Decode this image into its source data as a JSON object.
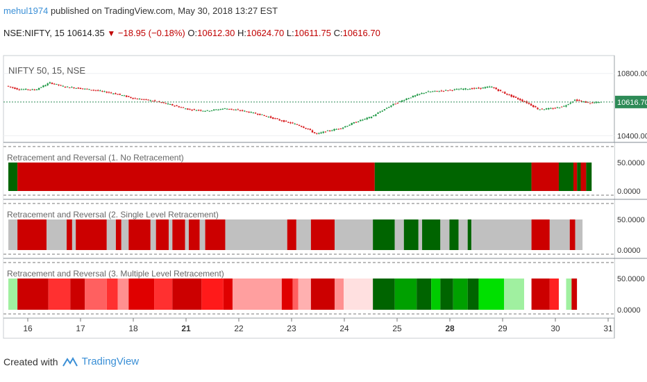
{
  "header": {
    "user": "mehul1974",
    "published_text": "published on TradingView.com, May 30, 2018 13:27 EST",
    "symbol": "NSE:NIFTY, 15",
    "last": "10614.35",
    "change": "−18.95 (−0.18%)",
    "o_label": "O:",
    "o": "10612.30",
    "h_label": "H:",
    "h": "10624.70",
    "l_label": "L:",
    "l": "10611.75",
    "c_label": "C:",
    "c": "10616.70"
  },
  "footer": {
    "created_with": "Created with",
    "brand": "TradingView"
  },
  "colors": {
    "up": "#1a9641",
    "down": "#d7191c",
    "dark_green": "#006400",
    "red": "#cc0000",
    "gray": "#c0c0c0",
    "price_line": "#2e8b57"
  },
  "chart_data": [
    {
      "type": "candlestick",
      "title": "NIFTY 50, 15, NSE",
      "x_ticks": [
        "16",
        "17",
        "18",
        "21",
        "22",
        "23",
        "24",
        "25",
        "28",
        "29",
        "30",
        "31"
      ],
      "y_ticks": [
        "10800.00",
        "10400.00"
      ],
      "y_range": [
        10380,
        10870
      ],
      "current_price_label": "10616.70",
      "price_path": [
        [
          0,
          10720
        ],
        [
          0.3,
          10700
        ],
        [
          0.8,
          10695
        ],
        [
          1.2,
          10740
        ],
        [
          1.6,
          10715
        ],
        [
          2.0,
          10705
        ],
        [
          2.5,
          10690
        ],
        [
          3.0,
          10670
        ],
        [
          3.5,
          10640
        ],
        [
          4.0,
          10625
        ],
        [
          4.5,
          10600
        ],
        [
          5.0,
          10570
        ],
        [
          5.5,
          10560
        ],
        [
          6.0,
          10575
        ],
        [
          6.5,
          10560
        ],
        [
          7.0,
          10535
        ],
        [
          7.5,
          10500
        ],
        [
          8.0,
          10470
        ],
        [
          8.3,
          10440
        ],
        [
          8.5,
          10410
        ],
        [
          8.8,
          10430
        ],
        [
          9.2,
          10450
        ],
        [
          9.6,
          10490
        ],
        [
          10.0,
          10520
        ],
        [
          10.3,
          10560
        ],
        [
          10.6,
          10600
        ],
        [
          11.0,
          10640
        ],
        [
          11.5,
          10680
        ],
        [
          12.0,
          10690
        ],
        [
          12.5,
          10700
        ],
        [
          13.0,
          10705
        ],
        [
          13.3,
          10715
        ],
        [
          13.6,
          10680
        ],
        [
          14.0,
          10640
        ],
        [
          14.3,
          10610
        ],
        [
          14.6,
          10570
        ],
        [
          15.0,
          10575
        ],
        [
          15.3,
          10590
        ],
        [
          15.6,
          10630
        ],
        [
          16.0,
          10610
        ],
        [
          16.3,
          10615
        ]
      ]
    },
    {
      "type": "heatmap",
      "title": "Retracement and Reversal (1. No Retracement)",
      "y_ticks": [
        "50.0000",
        "0.0000"
      ],
      "segments": [
        [
          0,
          0.25,
          "dark_green"
        ],
        [
          0.25,
          10.05,
          "red"
        ],
        [
          10.05,
          14.35,
          "dark_green"
        ],
        [
          14.35,
          15.1,
          "red"
        ],
        [
          15.1,
          15.5,
          "dark_green"
        ],
        [
          15.5,
          15.6,
          "red"
        ],
        [
          15.6,
          15.7,
          "dark_green"
        ],
        [
          15.7,
          15.85,
          "red"
        ],
        [
          15.85,
          16.0,
          "dark_green"
        ]
      ]
    },
    {
      "type": "heatmap",
      "title": "Retracement and Reversal (2. Single Level Retracement)",
      "y_ticks": [
        "50.0000",
        "0.0000"
      ],
      "segments": [
        [
          0,
          0.25,
          "gray"
        ],
        [
          0.25,
          1.05,
          "red"
        ],
        [
          1.05,
          1.6,
          "gray"
        ],
        [
          1.6,
          1.75,
          "red"
        ],
        [
          1.75,
          1.85,
          "gray"
        ],
        [
          1.85,
          2.7,
          "red"
        ],
        [
          2.7,
          2.95,
          "gray"
        ],
        [
          2.95,
          3.1,
          "red"
        ],
        [
          3.1,
          3.3,
          "gray"
        ],
        [
          3.3,
          3.9,
          "red"
        ],
        [
          3.9,
          4.05,
          "gray"
        ],
        [
          4.05,
          4.4,
          "red"
        ],
        [
          4.4,
          4.5,
          "gray"
        ],
        [
          4.5,
          4.85,
          "red"
        ],
        [
          4.85,
          4.95,
          "gray"
        ],
        [
          4.95,
          5.25,
          "red"
        ],
        [
          5.25,
          5.4,
          "gray"
        ],
        [
          5.4,
          5.95,
          "red"
        ],
        [
          5.95,
          7.65,
          "gray"
        ],
        [
          7.65,
          7.9,
          "red"
        ],
        [
          7.9,
          8.3,
          "gray"
        ],
        [
          8.3,
          8.95,
          "red"
        ],
        [
          8.95,
          10.0,
          "gray"
        ],
        [
          10.0,
          10.6,
          "dark_green"
        ],
        [
          10.6,
          10.85,
          "gray"
        ],
        [
          10.85,
          11.25,
          "dark_green"
        ],
        [
          11.25,
          11.35,
          "gray"
        ],
        [
          11.35,
          11.85,
          "dark_green"
        ],
        [
          11.85,
          12.1,
          "gray"
        ],
        [
          12.1,
          12.35,
          "dark_green"
        ],
        [
          12.35,
          12.6,
          "gray"
        ],
        [
          12.6,
          12.7,
          "dark_green"
        ],
        [
          12.7,
          14.35,
          "gray"
        ],
        [
          14.35,
          14.85,
          "red"
        ],
        [
          14.85,
          15.4,
          "gray"
        ],
        [
          15.4,
          15.55,
          "red"
        ],
        [
          15.55,
          15.75,
          "gray"
        ]
      ]
    },
    {
      "type": "heatmap",
      "title": "Retracement and Reversal (3. Multiple Level Retracement)",
      "y_ticks": [
        "50.0000",
        "0.0000"
      ],
      "segments": [
        [
          0,
          0.25,
          "#a0f0a0"
        ],
        [
          0.25,
          1.1,
          "#cc0000"
        ],
        [
          1.1,
          1.7,
          "#ff3030"
        ],
        [
          1.7,
          2.1,
          "#cc0000"
        ],
        [
          2.1,
          2.7,
          "#ff6060"
        ],
        [
          2.7,
          3.0,
          "#ff3030"
        ],
        [
          3.0,
          3.3,
          "#ff9090"
        ],
        [
          3.3,
          4.0,
          "#e00000"
        ],
        [
          4.0,
          4.5,
          "#ff3030"
        ],
        [
          4.5,
          5.3,
          "#cc0000"
        ],
        [
          5.3,
          5.9,
          "#ff1a1a"
        ],
        [
          5.9,
          6.15,
          "#e00000"
        ],
        [
          6.15,
          7.5,
          "#ff9f9f"
        ],
        [
          7.5,
          7.8,
          "#e00000"
        ],
        [
          7.8,
          7.95,
          "#ff6060"
        ],
        [
          7.95,
          8.3,
          "#ffb0b0"
        ],
        [
          8.3,
          8.95,
          "#cc0000"
        ],
        [
          8.95,
          9.2,
          "#ff9090"
        ],
        [
          9.2,
          10.0,
          "#ffe0e0"
        ],
        [
          10.0,
          10.6,
          "#006400"
        ],
        [
          10.6,
          11.2,
          "#00a000"
        ],
        [
          11.2,
          11.6,
          "#006400"
        ],
        [
          11.6,
          11.85,
          "#00cc00"
        ],
        [
          11.85,
          12.2,
          "#006400"
        ],
        [
          12.2,
          12.6,
          "#00a000"
        ],
        [
          12.6,
          12.9,
          "#006400"
        ],
        [
          12.9,
          13.6,
          "#00e000"
        ],
        [
          13.6,
          14.15,
          "#a0f0a0"
        ],
        [
          14.15,
          14.35,
          "#ffffff"
        ],
        [
          14.35,
          14.85,
          "#cc0000"
        ],
        [
          14.85,
          15.1,
          "#ff2020"
        ],
        [
          15.1,
          15.3,
          "#ffffff"
        ],
        [
          15.3,
          15.45,
          "#a0f0a0"
        ],
        [
          15.45,
          15.6,
          "#cc0000"
        ],
        [
          15.6,
          15.75,
          "#ffffff"
        ]
      ]
    }
  ]
}
